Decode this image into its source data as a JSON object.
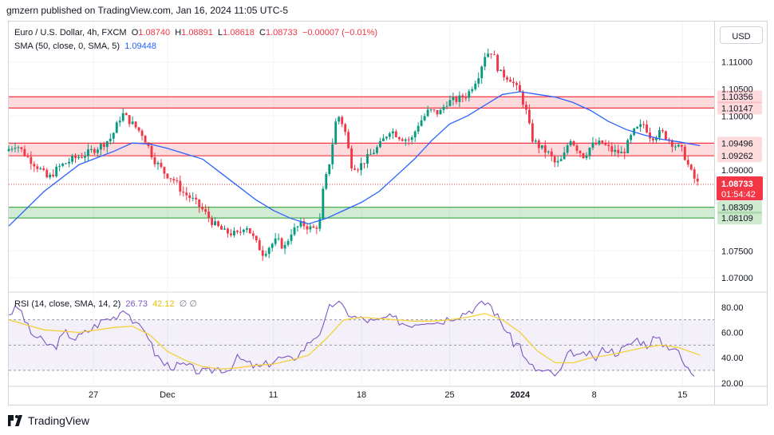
{
  "published_line": "gmzern published on TradingView.com, Jan 16, 2024 11:05 UTC-5",
  "currency_button": "USD",
  "legend": {
    "symbol": "Euro / U.S. Dollar, 4h, FXCM",
    "o_label": "O",
    "o_value": "1.08740",
    "h_label": "H",
    "h_value": "1.08891",
    "l_label": "L",
    "l_value": "1.08618",
    "c_label": "C",
    "c_value": "1.08733",
    "change": "−0.00007 (−0.01%)",
    "sma_title": "SMA (50, close, 0, SMA, 5)",
    "sma_value": "1.09448"
  },
  "rsi_legend": {
    "title": "RSI (14, close, SMA, 14, 2)",
    "rsi_value": "26.73",
    "sma_value": "42.12",
    "extra": "∅ ∅"
  },
  "logo_text": "TradingView",
  "countdown": "01:54:42",
  "colors": {
    "up": "#089981",
    "down": "#f23645",
    "sma": "#2962ff",
    "rsi": "#7e57c2",
    "rsi_sma": "#f5d03b",
    "resistance": "#f23645",
    "support": "#4caf50"
  },
  "chart_data": [
    {
      "type": "candlestick",
      "xlim": [
        0,
        200
      ],
      "ylim": [
        1.0675,
        1.1175
      ],
      "x_ticks": [
        {
          "x": 24,
          "label": "27"
        },
        {
          "x": 45,
          "label": "Dec"
        },
        {
          "x": 75,
          "label": "11"
        },
        {
          "x": 100,
          "label": "18"
        },
        {
          "x": 125,
          "label": "25"
        },
        {
          "x": 145,
          "label": "2024"
        },
        {
          "x": 166,
          "label": "8"
        },
        {
          "x": 191,
          "label": "15"
        }
      ],
      "y_ticks": [
        {
          "value": 1.07,
          "label": "1.07000"
        },
        {
          "value": 1.075,
          "label": "1.07500"
        },
        {
          "value": 1.09,
          "label": "1.09000"
        },
        {
          "value": 1.1,
          "label": "1.10000"
        },
        {
          "value": 1.105,
          "label": "1.10500"
        },
        {
          "value": 1.11,
          "label": "1.11000"
        }
      ],
      "zones": [
        {
          "type": "resistance",
          "from": 1.10147,
          "to": 1.10356,
          "labels": [
            "1.10356",
            "1.10147"
          ]
        },
        {
          "type": "resistance",
          "from": 1.09262,
          "to": 1.09496,
          "labels": [
            "1.09496",
            "1.09262"
          ]
        },
        {
          "type": "support",
          "from": 1.08109,
          "to": 1.08309,
          "labels": [
            "1.08309",
            "1.08109"
          ]
        }
      ],
      "last_price": {
        "value": 1.08733,
        "label": "1.08733"
      },
      "price_key_points": [
        [
          0,
          1.0935
        ],
        [
          3,
          1.0948
        ],
        [
          6,
          1.0925
        ],
        [
          10,
          1.09
        ],
        [
          12,
          1.0883
        ],
        [
          15,
          1.0905
        ],
        [
          19,
          1.092
        ],
        [
          23,
          1.093
        ],
        [
          27,
          1.0945
        ],
        [
          30,
          1.096
        ],
        [
          33,
          1.1005
        ],
        [
          36,
          1.0985
        ],
        [
          39,
          1.0965
        ],
        [
          42,
          1.092
        ],
        [
          45,
          1.0895
        ],
        [
          48,
          1.088
        ],
        [
          50,
          1.086
        ],
        [
          53,
          1.0845
        ],
        [
          56,
          1.0825
        ],
        [
          59,
          1.08
        ],
        [
          62,
          1.0785
        ],
        [
          66,
          1.078
        ],
        [
          68,
          1.08
        ],
        [
          71,
          1.0765
        ],
        [
          73,
          1.0745
        ],
        [
          75,
          1.076
        ],
        [
          77,
          1.077
        ],
        [
          79,
          1.0755
        ],
        [
          81,
          1.0785
        ],
        [
          84,
          1.08
        ],
        [
          87,
          1.079
        ],
        [
          89,
          1.08
        ],
        [
          90,
          1.086
        ],
        [
          92,
          1.092
        ],
        [
          94,
          1.1005
        ],
        [
          96,
          1.098
        ],
        [
          98,
          1.091
        ],
        [
          100,
          1.0905
        ],
        [
          103,
          1.0925
        ],
        [
          106,
          1.0945
        ],
        [
          109,
          1.0975
        ],
        [
          112,
          1.096
        ],
        [
          115,
          1.0955
        ],
        [
          117,
          1.0985
        ],
        [
          120,
          1.101
        ],
        [
          123,
          1.1005
        ],
        [
          125,
          1.1025
        ],
        [
          128,
          1.103
        ],
        [
          131,
          1.104
        ],
        [
          134,
          1.1075
        ],
        [
          136,
          1.1115
        ],
        [
          138,
          1.112
        ],
        [
          140,
          1.108
        ],
        [
          143,
          1.107
        ],
        [
          146,
          1.104
        ],
        [
          148,
          1.1
        ],
        [
          149,
          1.096
        ],
        [
          151,
          1.0945
        ],
        [
          154,
          1.093
        ],
        [
          156,
          1.091
        ],
        [
          158,
          1.092
        ],
        [
          160,
          1.096
        ],
        [
          162,
          1.094
        ],
        [
          164,
          1.0925
        ],
        [
          166,
          1.0945
        ],
        [
          169,
          1.095
        ],
        [
          172,
          1.0935
        ],
        [
          175,
          1.093
        ],
        [
          178,
          1.097
        ],
        [
          181,
          1.0985
        ],
        [
          183,
          1.096
        ],
        [
          186,
          1.097
        ],
        [
          189,
          1.095
        ],
        [
          192,
          1.0935
        ],
        [
          194,
          1.09
        ],
        [
          196,
          1.0875
        ]
      ],
      "sma_points": [
        [
          0,
          1.0796
        ],
        [
          10,
          1.086
        ],
        [
          20,
          1.091
        ],
        [
          30,
          1.0935
        ],
        [
          35,
          1.095
        ],
        [
          40,
          1.0948
        ],
        [
          45,
          1.094
        ],
        [
          50,
          1.093
        ],
        [
          55,
          1.092
        ],
        [
          60,
          1.0895
        ],
        [
          65,
          1.087
        ],
        [
          70,
          1.0845
        ],
        [
          75,
          1.0825
        ],
        [
          80,
          1.081
        ],
        [
          85,
          1.08
        ],
        [
          90,
          1.081
        ],
        [
          95,
          1.0825
        ],
        [
          100,
          1.084
        ],
        [
          105,
          1.086
        ],
        [
          110,
          1.089
        ],
        [
          115,
          1.092
        ],
        [
          120,
          1.0955
        ],
        [
          125,
          1.0985
        ],
        [
          130,
          1.1
        ],
        [
          135,
          1.102
        ],
        [
          140,
          1.104
        ],
        [
          145,
          1.1045
        ],
        [
          150,
          1.104
        ],
        [
          155,
          1.1035
        ],
        [
          160,
          1.1025
        ],
        [
          165,
          1.101
        ],
        [
          170,
          1.099
        ],
        [
          175,
          1.0975
        ],
        [
          180,
          1.0965
        ],
        [
          185,
          1.0957
        ],
        [
          190,
          1.0952
        ],
        [
          196,
          1.0945
        ]
      ]
    },
    {
      "type": "line",
      "title": "RSI (14, close, SMA, 14, 2)",
      "xlim": [
        0,
        200
      ],
      "ylim": [
        18,
        90
      ],
      "y_ticks": [
        {
          "value": 20,
          "label": "20.00"
        },
        {
          "value": 40,
          "label": "40.00"
        },
        {
          "value": 60,
          "label": "60.00"
        },
        {
          "value": 80,
          "label": "80.00"
        }
      ],
      "bands": [
        70,
        50,
        30
      ],
      "series": [
        {
          "name": "RSI",
          "points": [
            [
              0,
              75
            ],
            [
              3,
              80
            ],
            [
              6,
              60
            ],
            [
              10,
              52
            ],
            [
              13,
              48
            ],
            [
              16,
              60
            ],
            [
              19,
              55
            ],
            [
              23,
              62
            ],
            [
              27,
              70
            ],
            [
              30,
              72
            ],
            [
              33,
              80
            ],
            [
              36,
              65
            ],
            [
              39,
              62
            ],
            [
              41,
              45
            ],
            [
              44,
              35
            ],
            [
              47,
              33
            ],
            [
              50,
              34
            ],
            [
              53,
              30
            ],
            [
              56,
              28
            ],
            [
              59,
              32
            ],
            [
              62,
              30
            ],
            [
              65,
              40
            ],
            [
              68,
              35
            ],
            [
              71,
              32
            ],
            [
              74,
              36
            ],
            [
              77,
              40
            ],
            [
              80,
              38
            ],
            [
              83,
              45
            ],
            [
              86,
              55
            ],
            [
              89,
              62
            ],
            [
              91,
              80
            ],
            [
              93,
              85
            ],
            [
              95,
              78
            ],
            [
              98,
              72
            ],
            [
              101,
              70
            ],
            [
              104,
              68
            ],
            [
              107,
              72
            ],
            [
              110,
              70
            ],
            [
              113,
              66
            ],
            [
              116,
              68
            ],
            [
              119,
              70
            ],
            [
              122,
              68
            ],
            [
              125,
              72
            ],
            [
              128,
              74
            ],
            [
              131,
              78
            ],
            [
              134,
              82
            ],
            [
              136,
              84
            ],
            [
              138,
              75
            ],
            [
              141,
              62
            ],
            [
              143,
              52
            ],
            [
              145,
              50
            ],
            [
              147,
              35
            ],
            [
              150,
              30
            ],
            [
              153,
              28
            ],
            [
              156,
              26
            ],
            [
              158,
              40
            ],
            [
              160,
              45
            ],
            [
              162,
              40
            ],
            [
              164,
              44
            ],
            [
              166,
              38
            ],
            [
              169,
              48
            ],
            [
              172,
              44
            ],
            [
              175,
              48
            ],
            [
              178,
              55
            ],
            [
              181,
              50
            ],
            [
              183,
              56
            ],
            [
              186,
              50
            ],
            [
              189,
              48
            ],
            [
              192,
              32
            ],
            [
              195,
              26
            ]
          ]
        },
        {
          "name": "RSI-based MA",
          "points": [
            [
              0,
              70
            ],
            [
              10,
              62
            ],
            [
              20,
              60
            ],
            [
              30,
              64
            ],
            [
              35,
              65
            ],
            [
              40,
              58
            ],
            [
              45,
              45
            ],
            [
              50,
              38
            ],
            [
              55,
              33
            ],
            [
              60,
              31
            ],
            [
              65,
              32
            ],
            [
              70,
              34
            ],
            [
              75,
              35
            ],
            [
              80,
              38
            ],
            [
              85,
              42
            ],
            [
              90,
              55
            ],
            [
              95,
              70
            ],
            [
              100,
              72
            ],
            [
              105,
              71
            ],
            [
              110,
              70
            ],
            [
              115,
              69
            ],
            [
              120,
              69
            ],
            [
              125,
              70
            ],
            [
              130,
              72
            ],
            [
              135,
              75
            ],
            [
              140,
              70
            ],
            [
              145,
              60
            ],
            [
              150,
              45
            ],
            [
              155,
              36
            ],
            [
              160,
              36
            ],
            [
              165,
              40
            ],
            [
              170,
              42
            ],
            [
              175,
              45
            ],
            [
              180,
              48
            ],
            [
              185,
              50
            ],
            [
              190,
              48
            ],
            [
              196,
              42
            ]
          ]
        }
      ]
    }
  ]
}
